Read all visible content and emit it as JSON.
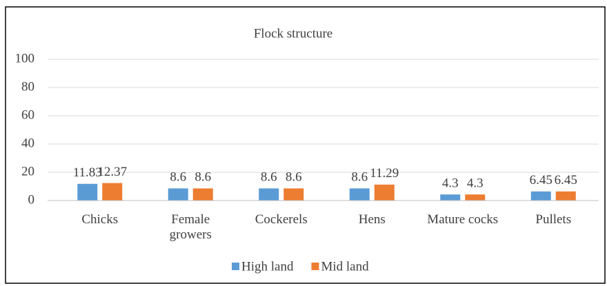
{
  "chart_data": {
    "type": "bar",
    "title": "Flock structure",
    "categories": [
      "Chicks",
      "Female growers",
      "Cockerels",
      "Hens",
      "Mature cocks",
      "Pullets"
    ],
    "series": [
      {
        "name": "High land",
        "color": "#5b9bd5",
        "values": [
          11.83,
          8.6,
          8.6,
          8.6,
          4.3,
          6.45
        ]
      },
      {
        "name": "Mid land",
        "color": "#ed7d31",
        "values": [
          12.37,
          8.6,
          8.6,
          11.29,
          4.3,
          6.45
        ]
      }
    ],
    "ylim": [
      0,
      100
    ],
    "yticks": [
      0,
      20,
      40,
      60,
      80,
      100
    ],
    "grid": true,
    "legend": "bottom"
  }
}
